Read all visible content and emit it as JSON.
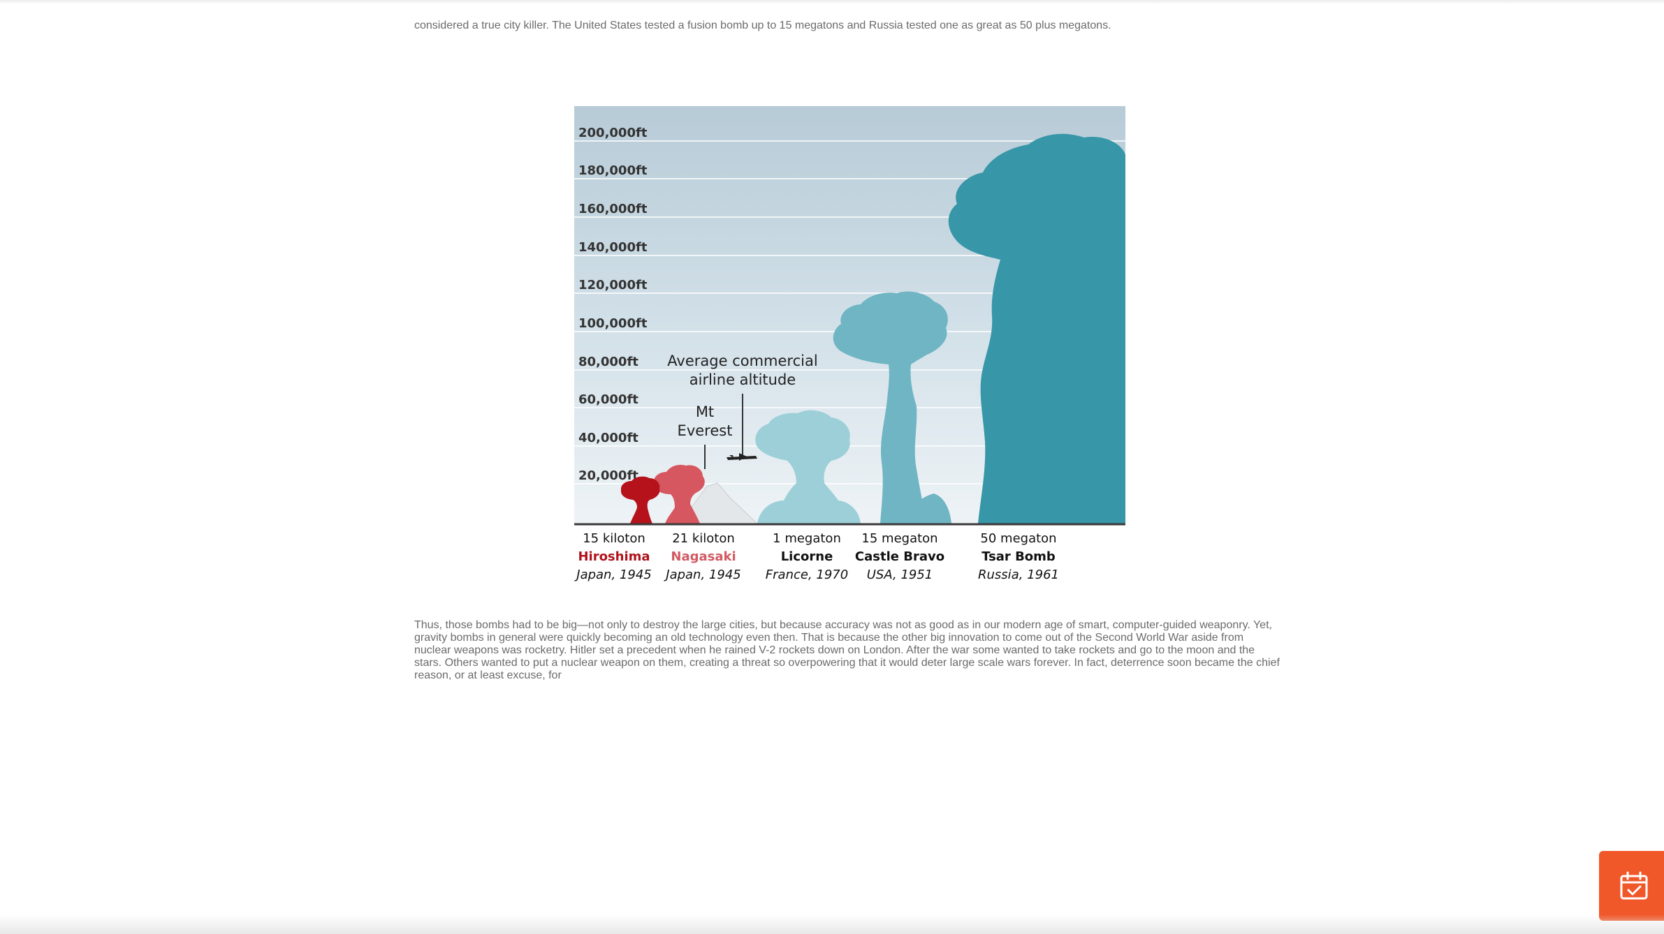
{
  "article": {
    "para_top": "considered a true city killer. The United States tested a fusion bomb up to 15 megatons and Russia tested one as great as 50 plus megatons.",
    "para_bottom": "Thus, those bombs had to be big—not only to destroy the large cities, but because accuracy was not as good as in our modern age of smart, computer-guided weaponry. Yet, gravity bombs in general were quickly becoming an old technology even then. That is because the other big innovation to come out of the Second World War aside from nuclear weapons was rocketry. Hitler set a precedent when he rained V-2 rockets down on London. After the war some wanted to take rockets and go to the moon and the stars. Others wanted to put a nuclear weapon on them, creating a threat so overpowering that it would deter large scale wars forever. In fact, deterrence soon became the chief reason, or at least excuse, for"
  },
  "figure": {
    "altitude_labels": [
      "200,000ft",
      "180,000ft",
      "160,000ft",
      "140,000ft",
      "120,000ft",
      "100,000ft",
      "80,000ft",
      "60,000ft",
      "40,000ft",
      "20,000ft"
    ],
    "annotation_airline": [
      "Average commercial",
      "airline altitude"
    ],
    "annotation_everest": [
      "Mt",
      "Everest"
    ],
    "bombs": [
      {
        "yield": "15 kiloton",
        "name": "Hiroshima",
        "origin": "Japan, 1945",
        "name_color": "#b0121c"
      },
      {
        "yield": "21 kiloton",
        "name": "Nagasaki",
        "origin": "Japan, 1945",
        "name_color": "#d25a63"
      },
      {
        "yield": "1 megaton",
        "name": "Licorne",
        "origin": "France, 1970",
        "name_color": "#111111"
      },
      {
        "yield": "15 megaton",
        "name": "Castle Bravo",
        "origin": "USA, 1951",
        "name_color": "#111111"
      },
      {
        "yield": "50 megaton",
        "name": "Tsar Bomb",
        "origin": "Russia, 1961",
        "name_color": "#111111"
      }
    ],
    "colors": {
      "hiroshima": "#b5121b",
      "nagasaki": "#d6575f",
      "licorne": "#9ccfd8",
      "castle_bravo": "#6fb5c3",
      "tsar_bomb": "#3796a8"
    }
  },
  "fab": {
    "icon": "calendar-check-icon",
    "color": "#f0582a"
  }
}
